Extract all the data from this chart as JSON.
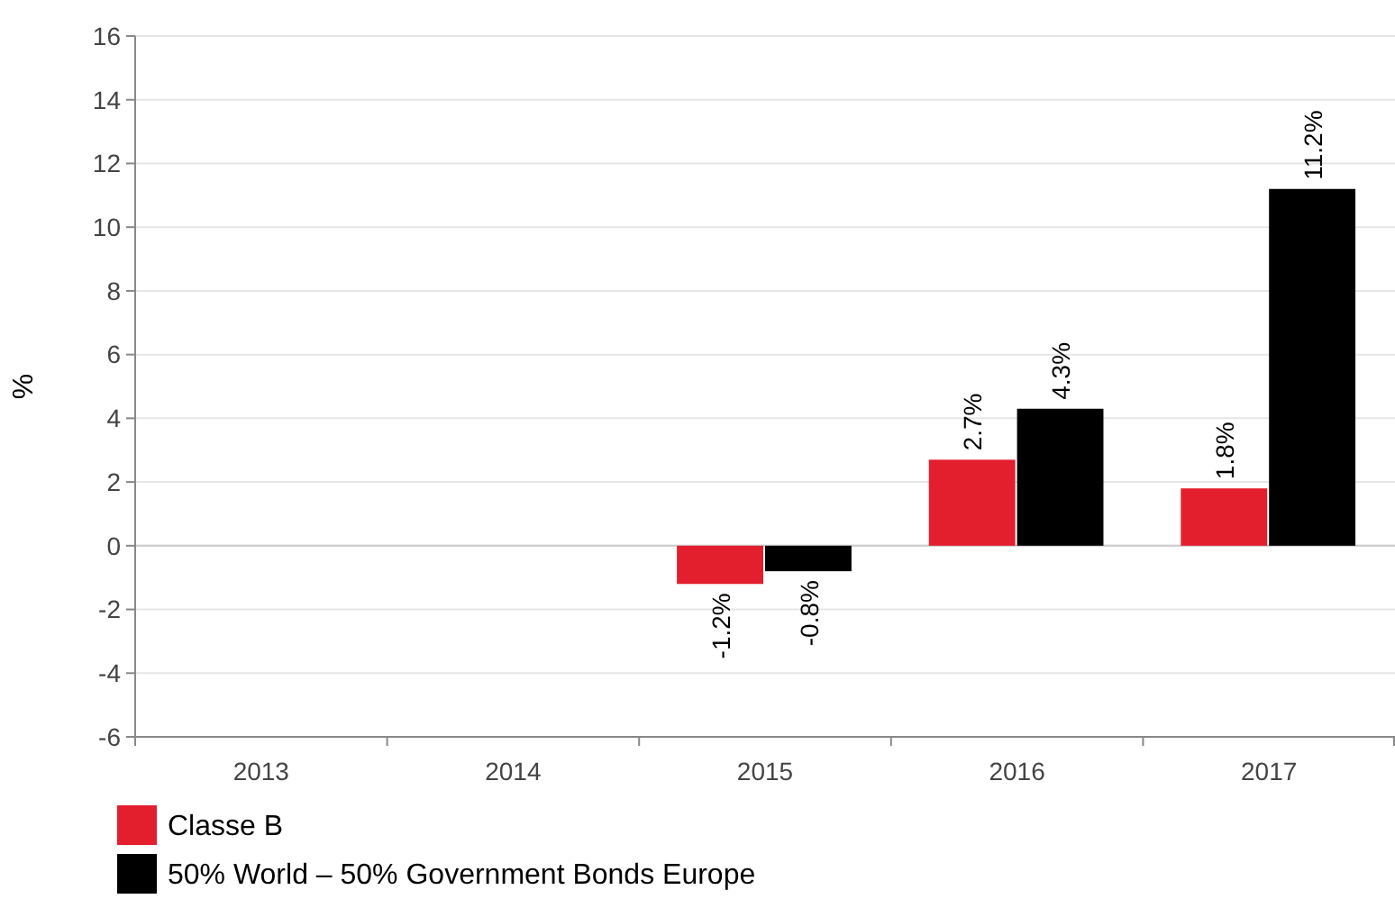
{
  "chart_data": {
    "type": "bar",
    "ylabel": "%",
    "categories": [
      "2013",
      "2014",
      "2015",
      "2016",
      "2017"
    ],
    "series": [
      {
        "name": "Classe B",
        "color": "#e31e2d",
        "values": [
          null,
          null,
          -1.2,
          2.7,
          1.8
        ],
        "value_labels": [
          null,
          null,
          "-1.2%",
          "2.7%",
          "1.8%"
        ]
      },
      {
        "name": "50% World – 50% Government Bonds Europe",
        "color": "#000000",
        "values": [
          null,
          null,
          -0.8,
          4.3,
          11.2
        ],
        "value_labels": [
          null,
          null,
          "-0.8%",
          "4.3%",
          "11.2%"
        ]
      }
    ],
    "ylim": [
      -6,
      16
    ],
    "yticks": [
      -6,
      -4,
      -2,
      0,
      2,
      4,
      6,
      8,
      10,
      12,
      14,
      16
    ],
    "grid": "y",
    "legend": "bottom"
  }
}
